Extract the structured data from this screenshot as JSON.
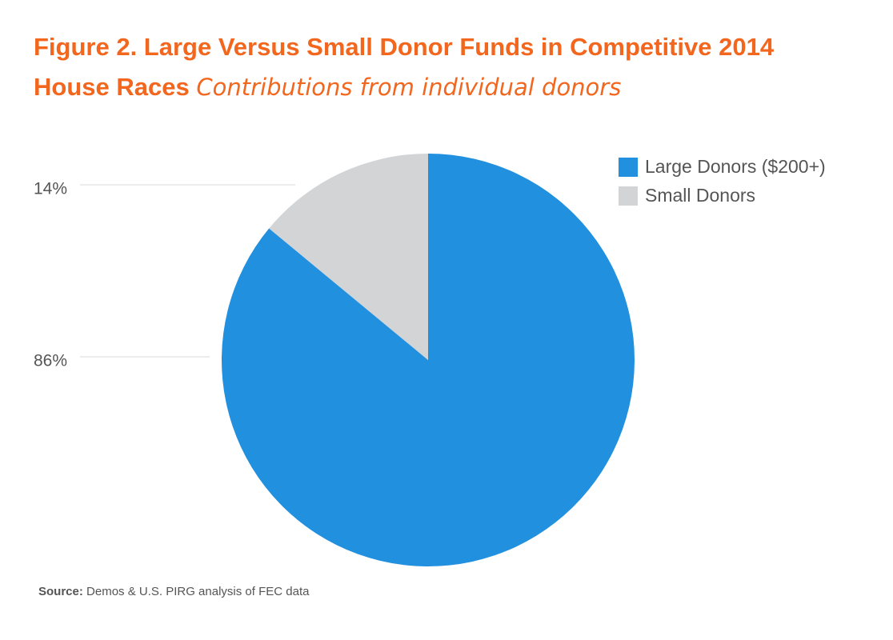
{
  "title": {
    "line1": "Figure 2. Large Versus Small Donor Funds in Competitive 2014",
    "line2": "House Races",
    "subtitle": "Contributions from individual donors"
  },
  "source": {
    "label": "Source:",
    "text": " Demos & U.S. PIRG analysis of FEC data"
  },
  "chart_data": {
    "type": "pie",
    "slices": [
      {
        "name": "Large Donors ($200+)",
        "value": 86,
        "label": "86%",
        "color": "#2190de"
      },
      {
        "name": "Small Donors",
        "value": 14,
        "label": "14%",
        "color": "#d3d4d6"
      }
    ],
    "legend_placement": "top-right",
    "start_angle_deg": 0
  }
}
